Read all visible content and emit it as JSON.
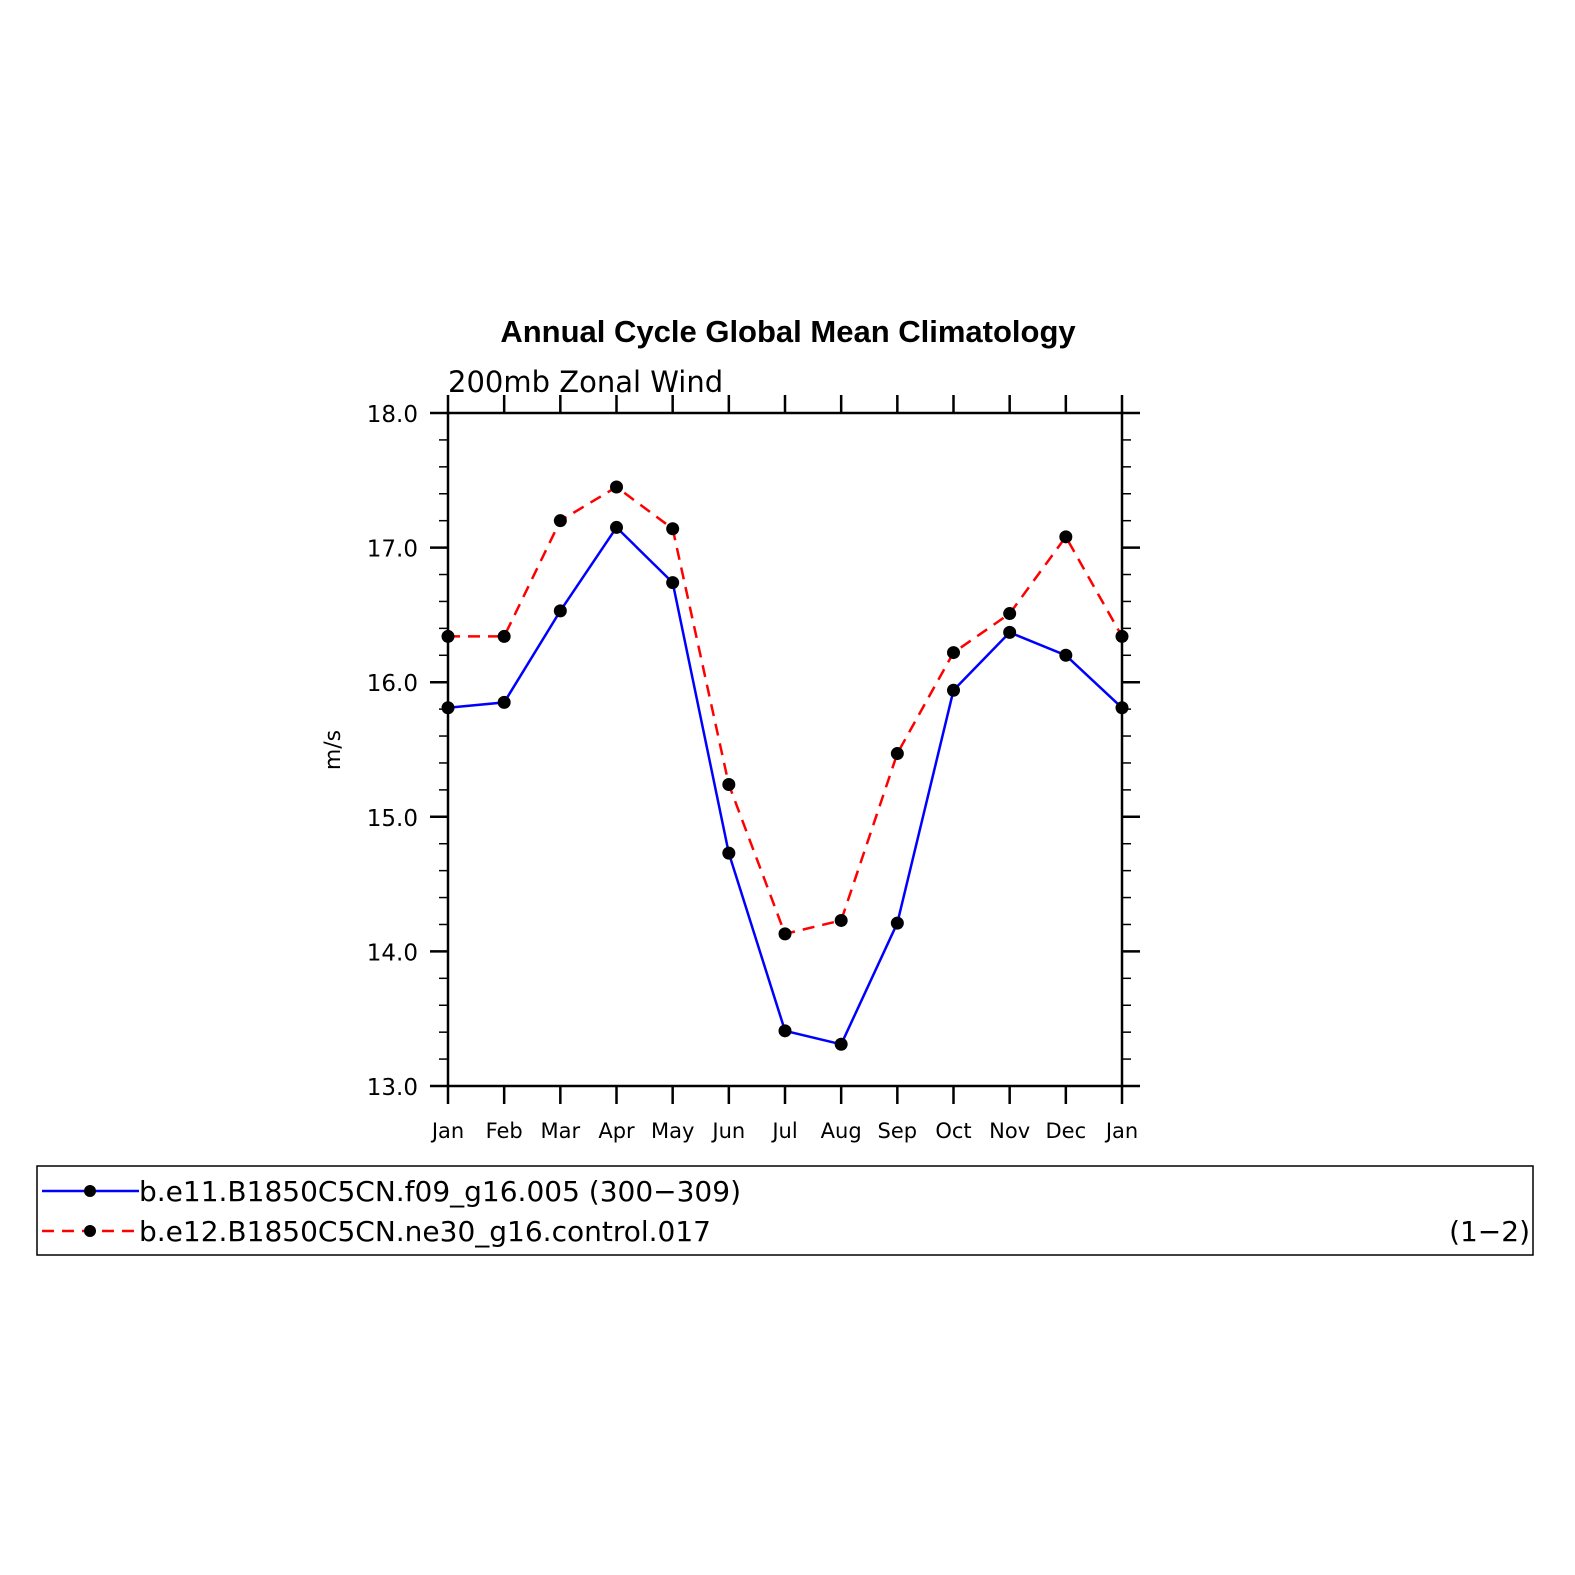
{
  "chart_data": {
    "type": "line",
    "title": "Annual Cycle Global Mean Climatology",
    "subtitle": "200mb Zonal Wind",
    "ylabel": "m/s",
    "xlabel": "",
    "categories": [
      "Jan",
      "Feb",
      "Mar",
      "Apr",
      "May",
      "Jun",
      "Jul",
      "Aug",
      "Sep",
      "Oct",
      "Nov",
      "Dec",
      "Jan"
    ],
    "ylim": [
      13.0,
      18.0
    ],
    "yticks": [
      "13.0",
      "14.0",
      "15.0",
      "16.0",
      "17.0",
      "18.0"
    ],
    "grid": false,
    "legend_position": "bottom",
    "series": [
      {
        "name": "b.e11.B1850C5CN.f09_g16.005 (300−309)",
        "color": "#0000ff",
        "line_style": "solid",
        "marker": "filled-circle",
        "values": [
          15.81,
          15.85,
          16.53,
          17.15,
          16.74,
          14.73,
          13.41,
          13.31,
          14.21,
          15.94,
          16.37,
          16.2,
          15.81
        ]
      },
      {
        "name": "b.e12.B1850C5CN.ne30_g16.control.017",
        "color": "#ff0000",
        "line_style": "dashed",
        "marker": "filled-circle",
        "values": [
          16.34,
          16.34,
          17.2,
          17.45,
          17.14,
          15.24,
          14.13,
          14.23,
          15.47,
          16.22,
          16.51,
          17.08,
          16.34
        ]
      }
    ],
    "annotation": "(1−2)"
  }
}
